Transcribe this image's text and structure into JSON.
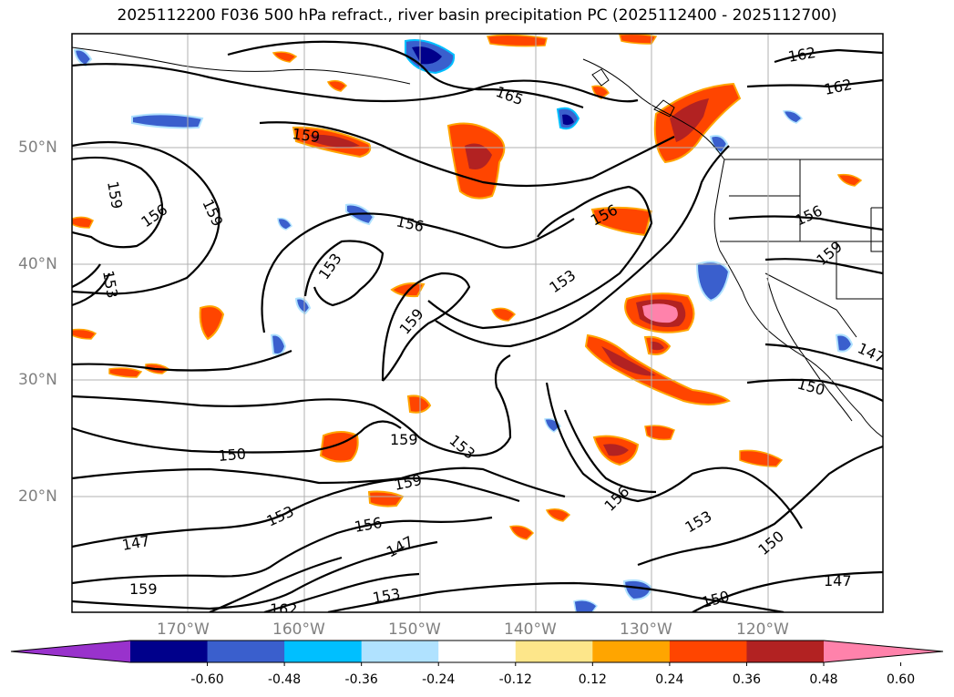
{
  "title": "2025112200 F036 500 hPa refract., river basin precipitation PC (2025112400 - 2025112700)",
  "lat_labels": [
    "50°N",
    "40°N",
    "30°N",
    "20°N"
  ],
  "lon_labels": [
    "170°W",
    "160°W",
    "150°W",
    "140°W",
    "130°W",
    "120°W"
  ],
  "colorbar": {
    "ticks": [
      "-0.60",
      "-0.48",
      "-0.36",
      "-0.24",
      "-0.12",
      "0.12",
      "0.24",
      "0.36",
      "0.48",
      "0.60"
    ],
    "colors": [
      "#9932cc",
      "#00008b",
      "#3a5fcd",
      "#00bfff",
      "#b0e2ff",
      "#ffffff",
      "#fde68a",
      "#ffa500",
      "#ff4500",
      "#b22222",
      "#ff82ab"
    ]
  },
  "contour_labels": [
    "159",
    "159",
    "159",
    "156",
    "153",
    "153",
    "165",
    "162",
    "162",
    "156",
    "156",
    "159",
    "159",
    "153",
    "156",
    "153",
    "159",
    "150",
    "159",
    "147",
    "153",
    "156",
    "147",
    "159",
    "162",
    "153",
    "156",
    "153",
    "150",
    "147",
    "150",
    "150",
    "147",
    "150",
    "156",
    "156"
  ]
}
